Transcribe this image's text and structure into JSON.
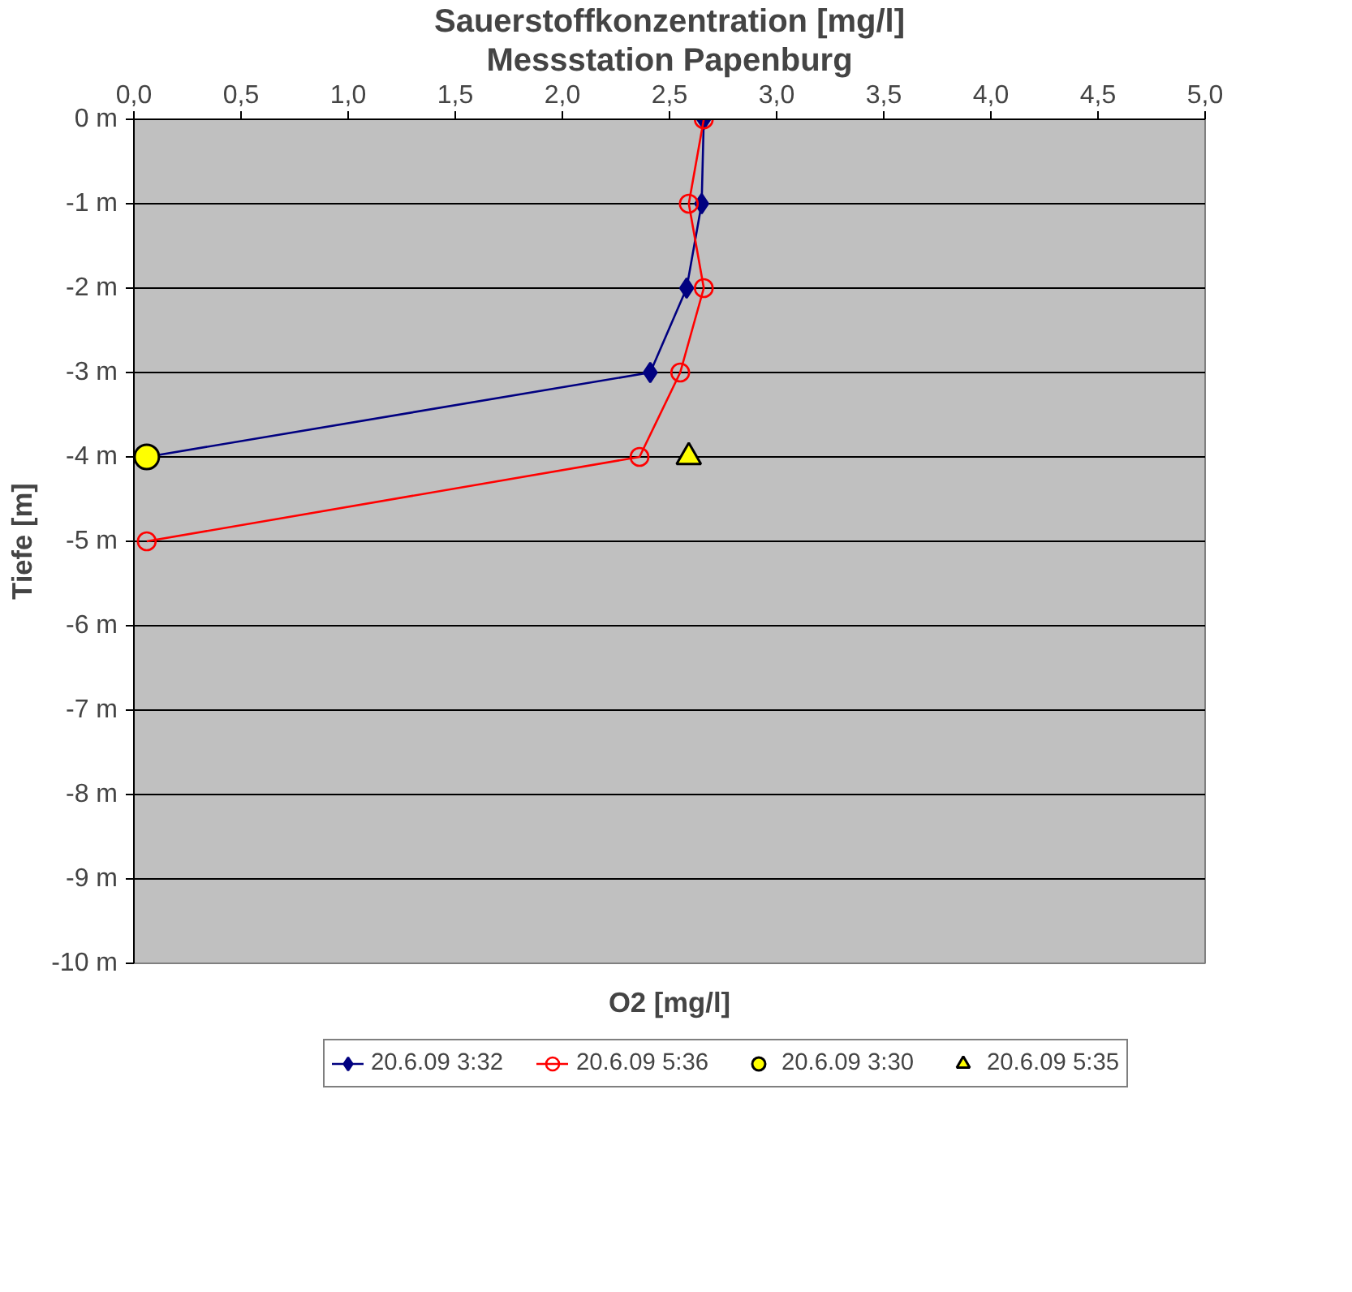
{
  "chart_data": {
    "type": "line",
    "title": "Sauerstoffkonzentration [mg/l]",
    "subtitle": "Messstation Papenburg",
    "xlabel": "O2 [mg/l]",
    "ylabel": "Tiefe [m]",
    "series": [
      {
        "name": "20.6.09 3:32",
        "color": "#000080",
        "x": [
          2.66,
          2.65,
          2.58,
          2.41,
          0.06
        ],
        "values": [
          0,
          -1,
          -2,
          -3,
          -4
        ],
        "marker": "diamond"
      },
      {
        "name": "20.6.09 5:36",
        "color": "#ff0000",
        "x": [
          2.66,
          2.59,
          2.66,
          2.55,
          2.36,
          0.06
        ],
        "values": [
          0,
          -1,
          -2,
          -3,
          -4,
          -5
        ],
        "marker": "circle"
      },
      {
        "name": "20.6.09 3:30",
        "type": "scatter",
        "color": "#ffff00",
        "x": [
          0.06
        ],
        "values": [
          -4
        ],
        "marker": "circle"
      },
      {
        "name": "20.6.09 5:35",
        "type": "scatter",
        "color": "#ffff00",
        "x": [
          2.59
        ],
        "values": [
          -4
        ],
        "marker": "triangle"
      }
    ],
    "xlim": [
      0,
      5
    ],
    "ylim": [
      -10,
      0
    ],
    "xticks": [
      {
        "value": 0,
        "label": "0,0"
      },
      {
        "value": 0.5,
        "label": "0,5"
      },
      {
        "value": 1,
        "label": "1,0"
      },
      {
        "value": 1.5,
        "label": "1,5"
      },
      {
        "value": 2,
        "label": "2,0"
      },
      {
        "value": 2.5,
        "label": "2,5"
      },
      {
        "value": 3,
        "label": "3,0"
      },
      {
        "value": 3.5,
        "label": "3,5"
      },
      {
        "value": 4,
        "label": "4,0"
      },
      {
        "value": 4.5,
        "label": "4,5"
      },
      {
        "value": 5,
        "label": "5,0"
      }
    ],
    "yticks": [
      {
        "value": 0,
        "label": "0 m"
      },
      {
        "value": -1,
        "label": "-1 m"
      },
      {
        "value": -2,
        "label": "-2 m"
      },
      {
        "value": -3,
        "label": "-3 m"
      },
      {
        "value": -4,
        "label": "-4 m"
      },
      {
        "value": -5,
        "label": "-5 m"
      },
      {
        "value": -6,
        "label": "-6 m"
      },
      {
        "value": -7,
        "label": "-7 m"
      },
      {
        "value": -8,
        "label": "-8 m"
      },
      {
        "value": -9,
        "label": "-9 m"
      },
      {
        "value": -10,
        "label": "-10 m"
      }
    ],
    "grid": "y",
    "legend": "bottom",
    "line_style": "solid"
  }
}
